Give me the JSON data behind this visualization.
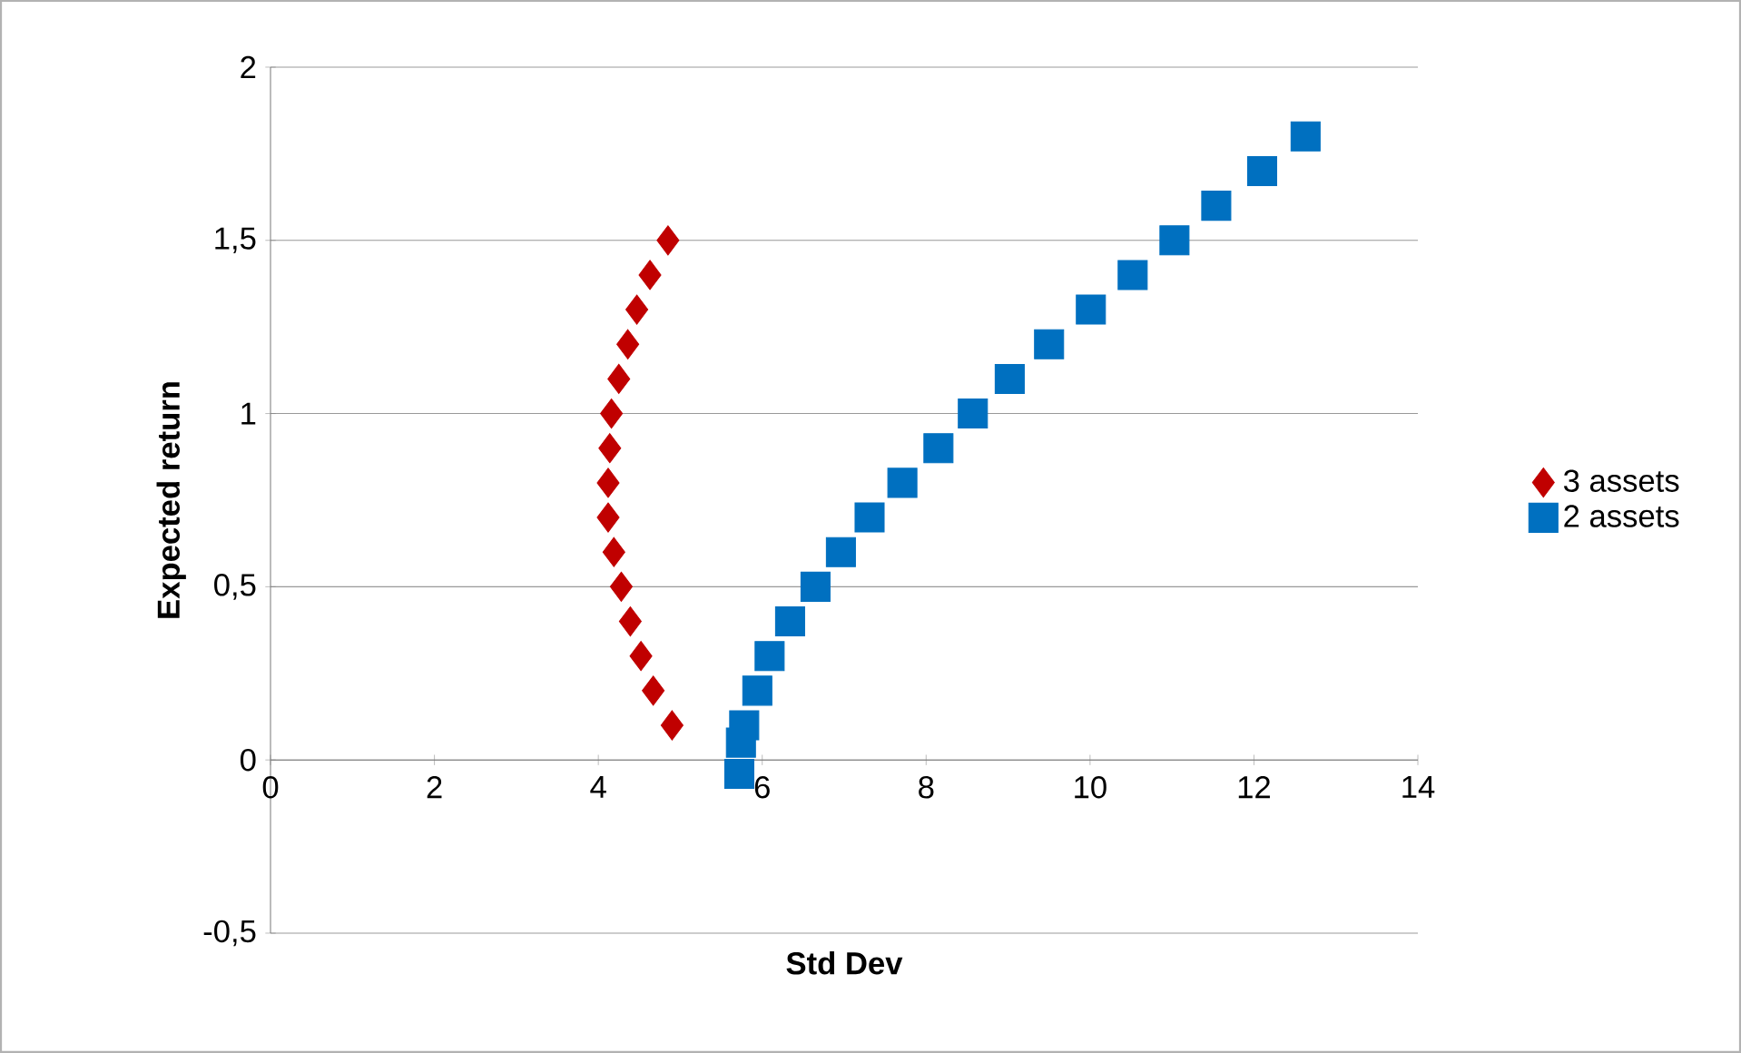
{
  "chart_data": {
    "type": "scatter",
    "xlabel": "Std Dev",
    "ylabel": "Expected return",
    "xlim": [
      0,
      14
    ],
    "ylim": [
      -0.5,
      2
    ],
    "xticks": [
      0,
      2,
      4,
      6,
      8,
      10,
      12,
      14
    ],
    "yticks": [
      {
        "value": -0.5,
        "label": "-0,5"
      },
      0,
      {
        "value": 0.5,
        "label": "0,5"
      },
      1,
      {
        "value": 1.5,
        "label": "1,5"
      },
      2
    ],
    "grid": "y",
    "legend": "right",
    "series": [
      {
        "name": "3 assets",
        "color": "#c00000",
        "marker": "diamond",
        "x": [
          4.85,
          4.63,
          4.47,
          4.36,
          4.25,
          4.16,
          4.14,
          4.12,
          4.12,
          4.19,
          4.28,
          4.39,
          4.52,
          4.67,
          4.9
        ],
        "values": [
          1.5,
          1.4,
          1.3,
          1.2,
          1.1,
          1.0,
          0.9,
          0.8,
          0.7,
          0.6,
          0.5,
          0.4,
          0.3,
          0.2,
          0.1
        ]
      },
      {
        "name": "2 assets",
        "color": "#0070c0",
        "marker": "square",
        "x": [
          12.63,
          12.1,
          11.54,
          11.03,
          10.52,
          10.01,
          9.5,
          9.02,
          8.57,
          8.15,
          7.71,
          7.31,
          6.96,
          6.65,
          6.34,
          6.09,
          5.94,
          5.78,
          5.74,
          5.72
        ],
        "values": [
          1.8,
          1.7,
          1.6,
          1.5,
          1.4,
          1.3,
          1.2,
          1.1,
          1.0,
          0.9,
          0.8,
          0.7,
          0.6,
          0.5,
          0.4,
          0.3,
          0.2,
          0.1,
          0.05,
          -0.04
        ]
      }
    ]
  }
}
